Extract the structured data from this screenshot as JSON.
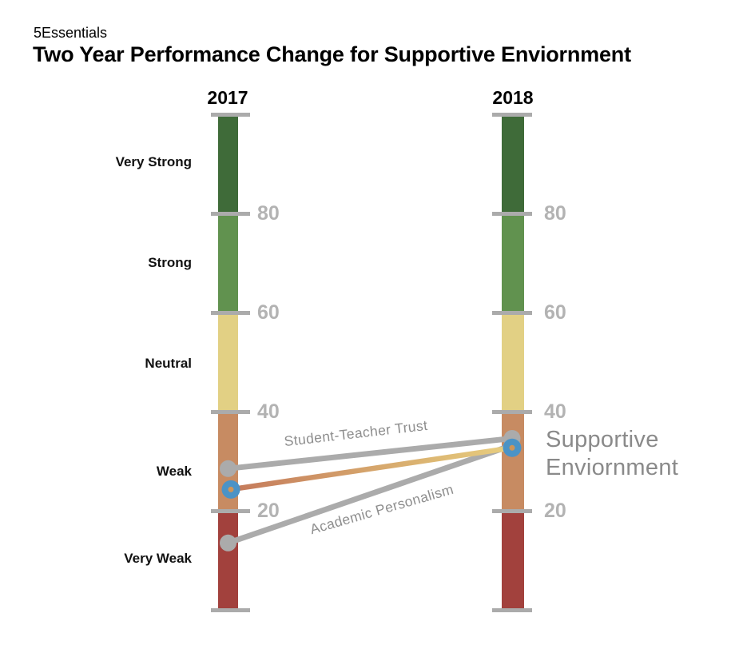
{
  "page": {
    "brand": "5Essentials",
    "title": "Two Year Performance Change for Supportive Enviornment"
  },
  "chart_data": {
    "type": "line",
    "subtype": "slopegraph-two-column",
    "columns": [
      {
        "year": "2017"
      },
      {
        "year": "2018"
      }
    ],
    "axis": {
      "range": [
        0,
        100
      ],
      "ticks": [
        "80",
        "60",
        "40",
        "20"
      ],
      "grid": "tick-bars-only",
      "tick_values": [
        80,
        60,
        40,
        20
      ]
    },
    "bands": [
      {
        "label": "Very Strong",
        "range": [
          80,
          100
        ],
        "color": "#3F6B39"
      },
      {
        "label": "Strong",
        "range": [
          60,
          80
        ],
        "color": "#61924F"
      },
      {
        "label": "Neutral",
        "range": [
          40,
          60
        ],
        "color": "#E2D084"
      },
      {
        "label": "Weak",
        "range": [
          20,
          40
        ],
        "color": "#C78B62"
      },
      {
        "label": "Very Weak",
        "range": [
          0,
          20
        ],
        "color": "#A2413D"
      }
    ],
    "series": [
      {
        "name": "Student-Teacher Trust",
        "style": "measure",
        "y2017": 28.5,
        "y2018": 34.6
      },
      {
        "name": "Academic Personalism",
        "style": "measure",
        "y2017": 13.5,
        "y2018": 33.2
      },
      {
        "name": "Supportive Enviornment",
        "style": "essential",
        "y2017": 24.3,
        "y2018": 32.7
      }
    ],
    "colors": {
      "tick": "#ABABAB",
      "axis_number": "#B3B3B3",
      "measure_line": "#ABABAB",
      "measure_dot": "#ABABAB",
      "essential_dot": "#4B93C6",
      "essential_dot_center": "#CE9559",
      "essential_start": "#C4795B",
      "essential_mid": "#DDB873",
      "essential_end": "#E9CF80",
      "label_gray": "#8A8A8A"
    },
    "legend_position": "inline-on-lines"
  }
}
